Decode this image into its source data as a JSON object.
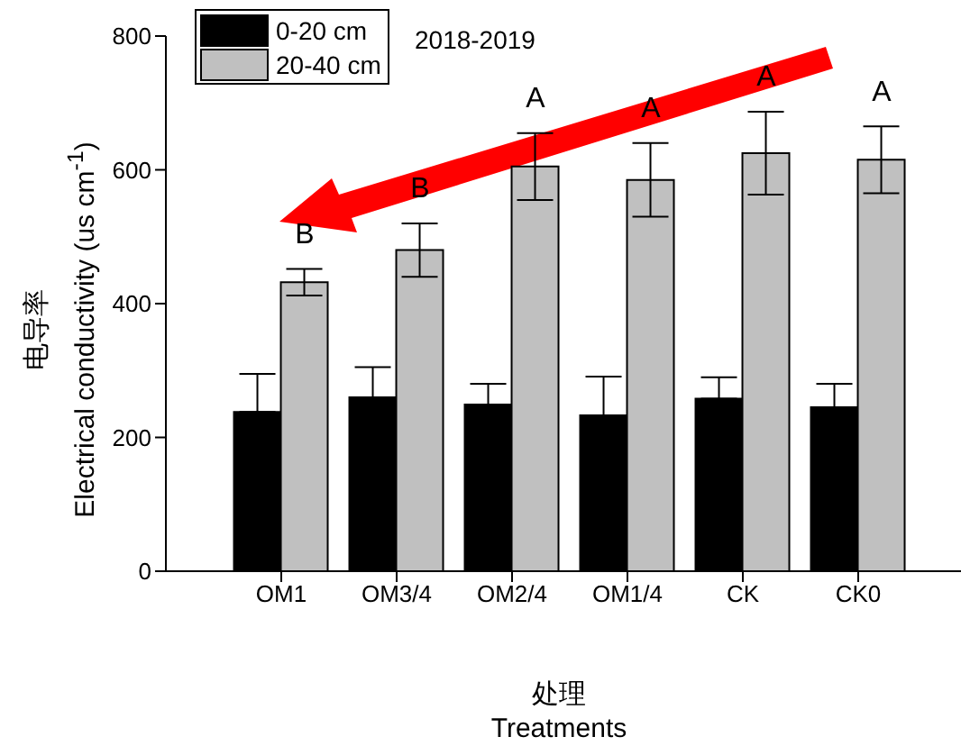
{
  "chart_data": {
    "type": "bar",
    "title": "2018-2019",
    "xlabel": "处理\nTreatments",
    "ylabel": "电导率\nElectrical conductivity (us cm$^{-1}$)",
    "categories": [
      "OM1",
      "OM3/4",
      "OM2/4",
      "OM1/4",
      "CK",
      "CK0"
    ],
    "series": [
      {
        "name": "0-20 cm",
        "color": "#000000",
        "values": [
          238,
          260,
          249,
          233,
          258,
          245
        ],
        "errors": [
          [
            238,
            295
          ],
          [
            260,
            305
          ],
          [
            249,
            280
          ],
          [
            233,
            291
          ],
          [
            258,
            290
          ],
          [
            245,
            280
          ]
        ]
      },
      {
        "name": "20-40 cm",
        "color": "#c0c0c0",
        "values": [
          432,
          480,
          605,
          585,
          625,
          615
        ],
        "errors": [
          20,
          40,
          50,
          55,
          62,
          50
        ]
      }
    ],
    "ylim": [
      0,
      800
    ],
    "yticks": [
      0,
      200,
      400,
      600,
      800
    ],
    "legend": "top left",
    "grid": false,
    "annotations": [
      "B",
      "B",
      "A",
      "A",
      "A",
      "A"
    ]
  }
}
